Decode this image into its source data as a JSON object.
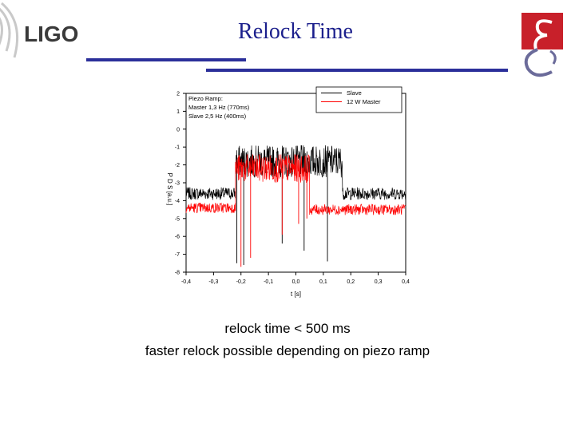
{
  "slide": {
    "title": "Relock Time",
    "logo_text": "LIGO",
    "caption_line1": "relock time < 500 ms",
    "caption_line2": "faster relock possible depending on piezo ramp"
  },
  "colors": {
    "title": "#1b1f8c",
    "rule": "#2b2f9a",
    "emblem": "#c8202a",
    "slave": "#000000",
    "master": "#ff0000"
  },
  "icons": [
    "ligo-logo-icon",
    "emblem-logo-icon"
  ],
  "chart_data": {
    "type": "line",
    "xlabel": "t [s]",
    "ylabel": "P D S [a.u.]",
    "xlim": [
      -0.4,
      0.4
    ],
    "ylim": [
      -8,
      2
    ],
    "xticks": [
      -0.4,
      -0.3,
      -0.2,
      -0.1,
      0.0,
      0.1,
      0.2,
      0.3,
      0.4
    ],
    "xtick_labels": [
      "-0,4",
      "-0,3",
      "-0,2",
      "-0,1",
      "0,0",
      "0,1",
      "0,2",
      "0,3",
      "0,4"
    ],
    "yticks": [
      2,
      1,
      0,
      -1,
      -2,
      -3,
      -4,
      -5,
      -6,
      -7,
      -8
    ],
    "annotation": [
      "Piezo Ramp:",
      "Master 1,3 Hz (770ms)",
      "Slave  2,5 Hz (400ms)"
    ],
    "legend_position": "top-right",
    "series": [
      {
        "name": "Slave",
        "color": "#000000",
        "segments": [
          {
            "x": [
              -0.4,
              -0.22
            ],
            "level": -3.6,
            "noise": 0.35
          },
          {
            "x": [
              -0.22,
              0.17
            ],
            "level": -1.8,
            "noise": 0.9
          },
          {
            "x": [
              0.17,
              0.4
            ],
            "level": -3.6,
            "noise": 0.35
          }
        ],
        "dips": [
          [
            -0.215,
            -7.5
          ],
          [
            -0.19,
            -7.6
          ],
          [
            -0.05,
            -6.4
          ],
          [
            0.03,
            -6.8
          ],
          [
            0.115,
            -7.4
          ]
        ]
      },
      {
        "name": "12 W Master",
        "color": "#ff0000",
        "segments": [
          {
            "x": [
              -0.4,
              -0.22
            ],
            "level": -4.4,
            "noise": 0.3
          },
          {
            "x": [
              -0.22,
              0.05
            ],
            "level": -2.2,
            "noise": 0.8
          },
          {
            "x": [
              0.05,
              0.4
            ],
            "level": -4.5,
            "noise": 0.3
          }
        ],
        "dips": [
          [
            -0.2,
            -7.7
          ],
          [
            -0.165,
            -7.2
          ],
          [
            -0.05,
            -5.9
          ],
          [
            0.01,
            -5.3
          ],
          [
            0.04,
            -5.0
          ]
        ]
      }
    ]
  }
}
